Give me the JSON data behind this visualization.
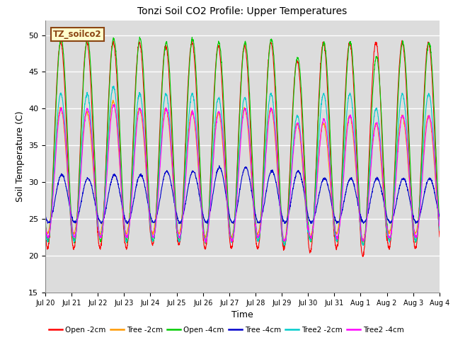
{
  "title": "Tonzi Soil CO2 Profile: Upper Temperatures",
  "xlabel": "Time",
  "ylabel": "Soil Temperature (C)",
  "ylim": [
    15,
    52
  ],
  "yticks": [
    15,
    20,
    25,
    30,
    35,
    40,
    45,
    50
  ],
  "series": [
    {
      "label": "Open -2cm",
      "color": "#FF0000"
    },
    {
      "label": "Tree -2cm",
      "color": "#FF9900"
    },
    {
      "label": "Open -4cm",
      "color": "#00CC00"
    },
    {
      "label": "Tree -4cm",
      "color": "#0000CC"
    },
    {
      "label": "Tree2 -2cm",
      "color": "#00CCCC"
    },
    {
      "label": "Tree2 -4cm",
      "color": "#FF00FF"
    }
  ],
  "x_tick_labels": [
    "Jul 20",
    "Jul 21",
    "Jul 22",
    "Jul 23",
    "Jul 24",
    "Jul 25",
    "Jul 26",
    "Jul 27",
    "Jul 28",
    "Jul 29",
    "Jul 30",
    "Jul 31",
    "Aug 1",
    "Aug 2",
    "Aug 3",
    "Aug 4"
  ],
  "annotation_text": "TZ_soilco2",
  "annotation_color": "#8B4513",
  "annotation_bg": "#FFFFCC",
  "background_color": "#DCDCDC",
  "num_days": 16,
  "points_per_day": 144
}
